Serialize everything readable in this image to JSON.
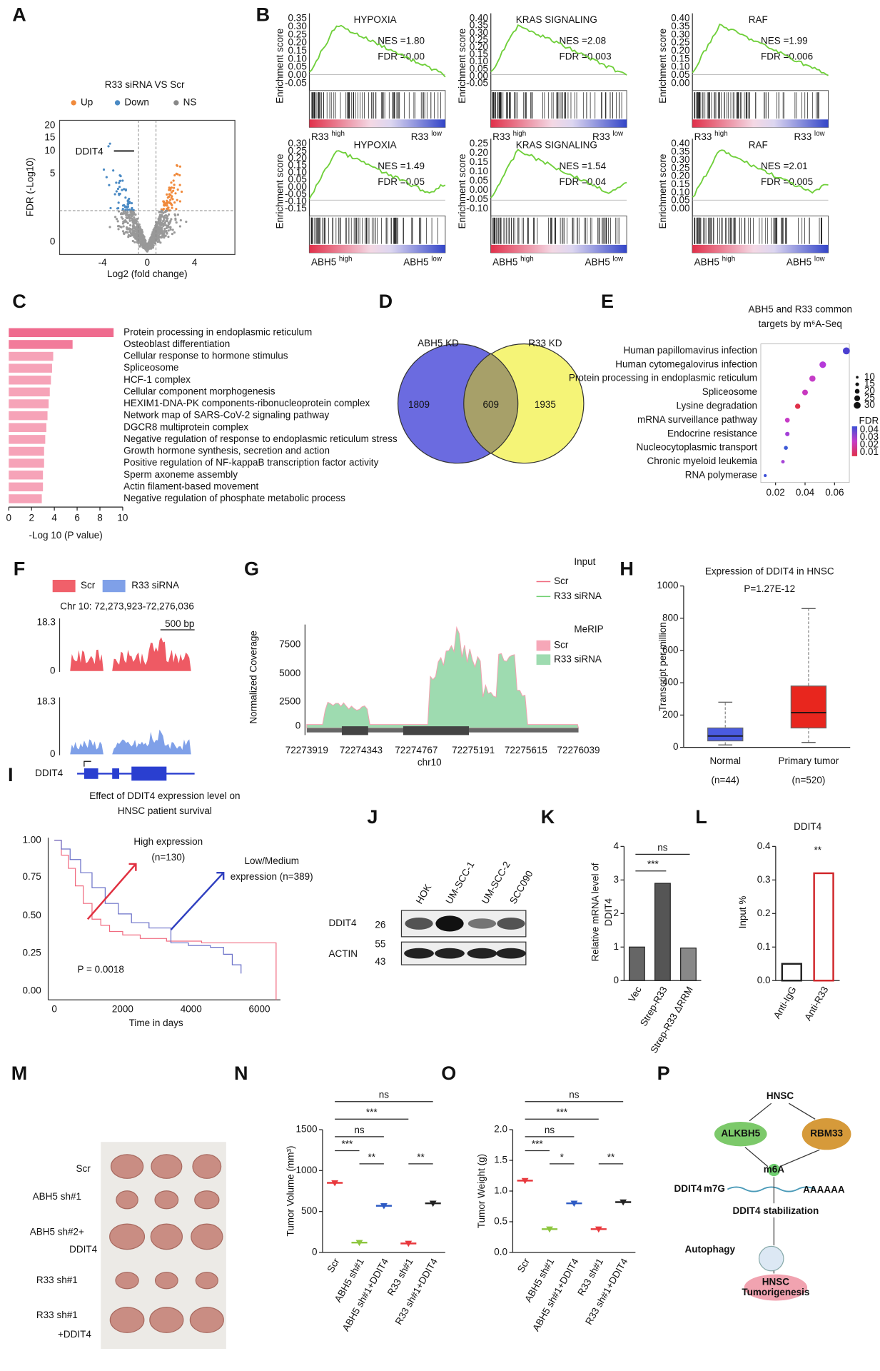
{
  "panels": {
    "labels": [
      "A",
      "B",
      "C",
      "D",
      "E",
      "F",
      "G",
      "H",
      "I",
      "J",
      "K",
      "L",
      "M",
      "N",
      "O",
      "P"
    ],
    "A": {
      "title": "R33 siRNA VS Scr",
      "legend": [
        "Up",
        "Down",
        "NS"
      ],
      "gene": "DDIT4",
      "x_label": "Log2 (fold change)",
      "y_label": "FDR (-Log10)",
      "x_ticks": [
        "-4",
        "0",
        "4"
      ],
      "y_ticks": [
        "20",
        "15",
        "10",
        "5",
        "0"
      ]
    },
    "B": {
      "y_label": "Enrichment score",
      "plots": [
        {
          "title": "HYPOXIA",
          "nes": "NES =1.80",
          "fdr": "FDR =0.00",
          "gene": "R33",
          "high": "high",
          "low": "low",
          "yticks": [
            "0.35",
            "0.30",
            "0.25",
            "0.20",
            "0.15",
            "0.10",
            "0.05",
            "0.00",
            "-0.05"
          ]
        },
        {
          "title": "KRAS SIGNALING",
          "nes": "NES =2.08",
          "fdr": "FDR =0.003",
          "gene": "R33",
          "high": "high",
          "low": "low",
          "yticks": [
            "0.40",
            "0.35",
            "0.30",
            "0.25",
            "0.20",
            "0.15",
            "0.10",
            "0.05",
            "0.00",
            "-0.05"
          ]
        },
        {
          "title": "RAF",
          "nes": "NES =1.99",
          "fdr": "FDR =0.006",
          "gene": "R33",
          "high": "high",
          "low": "low",
          "yticks": [
            "0.40",
            "0.35",
            "0.30",
            "0.25",
            "0.20",
            "0.15",
            "0.10",
            "0.05",
            "0.00"
          ]
        },
        {
          "title": "HYPOXIA",
          "nes": "NES =1.49",
          "fdr": "FDR =0.05",
          "gene": "ABH5",
          "high": "high",
          "low": "low",
          "yticks": [
            "0.30",
            "0.25",
            "0.20",
            "0.15",
            "0.10",
            "0.05",
            "0.00",
            "-0.05",
            "-0.10",
            "-0.15"
          ]
        },
        {
          "title": "KRAS SIGNALING",
          "nes": "NES =1.54",
          "fdr": "FDR =0.04",
          "gene": "ABH5",
          "high": "high",
          "low": "low",
          "yticks": [
            "0.25",
            "0.20",
            "0.15",
            "0.10",
            "0.05",
            "0.00",
            "-0.05",
            "-0.10"
          ]
        },
        {
          "title": "RAF",
          "nes": "NES =2.01",
          "fdr": "FDR =0.005",
          "gene": "ABH5",
          "high": "high",
          "low": "low",
          "yticks": [
            "0.40",
            "0.35",
            "0.30",
            "0.25",
            "0.20",
            "0.15",
            "0.10",
            "0.05",
            "0.00"
          ]
        }
      ]
    },
    "D": {
      "sets": [
        "ABH5 KD",
        "R33 KD"
      ],
      "counts": [
        1809,
        609,
        1935
      ]
    },
    "F": {
      "legend": [
        "Scr",
        "R33 siRNA"
      ],
      "region": "Chr 10: 72,273,923-72,276,036",
      "scale": "500 bp",
      "track_max": [
        "18.3",
        "18.3"
      ],
      "track_min": [
        "0",
        "0"
      ],
      "gene": "DDIT4"
    },
    "G": {
      "input_title": "Input",
      "input_legend": [
        "Scr",
        "R33 siRNA"
      ],
      "merip_title": "MeRIP",
      "merip_legend": [
        "Scr",
        "R33 siRNA"
      ],
      "y_label": "Normalized Coverage",
      "yticks": [
        "7500",
        "5000",
        "2500",
        "0"
      ],
      "xticks": [
        "72273919",
        "72274343",
        "72274767",
        "72275191",
        "72275615",
        "72276039"
      ],
      "x_label": "chr10"
    },
    "I": {
      "title": [
        "Effect  of DDIT4 expression level on",
        "HNSC patient survival"
      ],
      "yticks": [
        "1.00",
        "0.75",
        "0.50",
        "0.25",
        "0.00"
      ],
      "xticks": [
        "0",
        "2000",
        "4000",
        "6000"
      ],
      "x_label": "Time in days",
      "high": [
        "High expression",
        "(n=130)"
      ],
      "low": [
        "Low/Medium",
        "expression (n=389)"
      ],
      "p": "P = 0.0018"
    },
    "J": {
      "lanes": [
        "HOK",
        "UM-SCC-1",
        "UM-SCC-2",
        "SCC090"
      ],
      "rows": [
        "DDIT4",
        "ACTIN"
      ],
      "markers": [
        "26",
        "55",
        "43"
      ]
    },
    "M": {
      "rows": [
        "Scr",
        "ABH5 sh#1",
        "ABH5 sh#2+",
        "DDIT4",
        "R33 sh#1",
        "R33 sh#1",
        "+DDIT4"
      ]
    },
    "P": {
      "nodes": [
        "HNSC",
        "ALKBH5",
        "RBM33",
        "m6A",
        "DDIT4",
        "m7G",
        "AAAAAA",
        "DDIT4 stabilization",
        "Autophagy",
        "HNSC",
        "Tumorigenesis"
      ]
    }
  },
  "chart_data": [
    {
      "type": "bar",
      "horizontal": true,
      "x_label": "-Log 10 (P value)",
      "categories": [
        "Protein processing in endoplasmic reticulum",
        "Osteoblast differentiation",
        "Cellular response to hormone stimulus",
        "Spliceosome",
        "HCF-1 complex",
        "Cellular component morphogenesis",
        "HEXIM1-DNA-PK components-ribonucleoprotein complex",
        "Network map of SARS-CoV-2 signaling pathway",
        "DGCR8 multiprotein complex",
        "Negative regulation of response to endoplasmic reticulum stress",
        "Growth hormone synthesis, secretion and action",
        "Positive regulation of NF-kappaB transcription factor activity",
        "Sperm axoneme assembly",
        "Actin filament-based movement",
        "Negative regulation of phosphate metabolic process"
      ],
      "values": [
        9.2,
        5.6,
        3.9,
        3.8,
        3.7,
        3.6,
        3.5,
        3.4,
        3.3,
        3.2,
        3.1,
        3.1,
        3.0,
        3.0,
        2.9
      ],
      "colors": [
        "#ef6b8e",
        "#f27b9a",
        "#f6a3b8",
        "#f6a3b8",
        "#f6a3b8",
        "#f6a3b8",
        "#f6a3b8",
        "#f6a3b8",
        "#f6a3b8",
        "#f6a3b8",
        "#f6a3b8",
        "#f6a3b8",
        "#f6a3b8",
        "#f6a3b8",
        "#f6a3b8"
      ],
      "xlim": [
        0,
        10
      ],
      "xticks": [
        0,
        2,
        4,
        6,
        8,
        10
      ]
    },
    {
      "type": "dot",
      "title": [
        "ABH5 and R33 common",
        "targets by m⁶A-Seq"
      ],
      "categories": [
        "Human papillomavirus infection",
        "Human cytomegalovirus infection",
        "Protein processing in endoplasmic reticulum",
        "Spliceosome",
        "Lysine degradation",
        "mRNA surveillance pathway",
        "Endocrine resistance",
        "Nucleocytoplasmic transport",
        "Chronic myeloid leukemia",
        "RNA polymerase"
      ],
      "values": [
        0.068,
        0.052,
        0.045,
        0.04,
        0.035,
        0.028,
        0.028,
        0.027,
        0.025,
        0.013
      ],
      "colors": [
        "#4b3fd0",
        "#b53ad9",
        "#c53dc7",
        "#c838c0",
        "#e0304a",
        "#c63bc6",
        "#a33fd8",
        "#3d5ad6",
        "#a644d6",
        "#3d4fd6"
      ],
      "xlim": [
        0.01,
        0.07
      ],
      "xticks": [
        0.02,
        0.04,
        0.06
      ],
      "size_legend": [
        "10",
        "15",
        "20",
        "25",
        "30"
      ],
      "color_legend_title": "FDR",
      "color_legend": [
        "0.04",
        "0.03",
        "0.02",
        "0.01"
      ]
    },
    {
      "type": "box",
      "title": "Expression of DDIT4 in HNSC",
      "subtitle": "P=1.27E-12",
      "y_label": "Transcript per million",
      "categories": [
        "Normal",
        "Primary tumor"
      ],
      "n_labels": [
        "(n=44)",
        "(n=520)"
      ],
      "boxes": [
        {
          "min": 15,
          "q1": 40,
          "median": 70,
          "q3": 120,
          "max": 280
        },
        {
          "min": 30,
          "q1": 120,
          "median": 215,
          "q3": 380,
          "max": 860
        }
      ],
      "colors": [
        "#4a5be0",
        "#e8261e"
      ],
      "ylim": [
        0,
        1000
      ],
      "yticks": [
        0,
        200,
        400,
        600,
        800,
        1000
      ]
    },
    {
      "type": "bar",
      "y_label": [
        "Relative mRNA level of",
        "DDIT4"
      ],
      "categories": [
        "Vec",
        "Strep-R33",
        "Strep-R33 ΔRRM"
      ],
      "values": [
        1.0,
        2.9,
        0.97
      ],
      "colors": [
        "#666666",
        "#555555",
        "#888888"
      ],
      "outline": false,
      "ylim": [
        0,
        4
      ],
      "yticks": [
        0,
        1,
        2,
        3,
        4
      ],
      "annotations": [
        "ns",
        "***"
      ]
    },
    {
      "type": "bar",
      "title": "DDIT4",
      "y_label": "Input %",
      "categories": [
        "Anti-IgG",
        "Anti-R33"
      ],
      "values": [
        0.05,
        0.32
      ],
      "colors": [
        "#222222",
        "#d0262a"
      ],
      "outline": true,
      "ylim": [
        0,
        0.4
      ],
      "yticks": [
        {
          "value": 0,
          "label": "0.0"
        },
        0.1,
        0.2,
        0.3,
        0.4
      ],
      "annotations": [
        "**"
      ]
    },
    {
      "type": "strip",
      "y_label": "Tumor Volume (mm³)",
      "categories": [
        "Scr",
        "ABH5 sh#1",
        "ABH5 sh#1+DDIT4",
        "R33 sh#1",
        "R33 sh#1+DDIT4"
      ],
      "values": [
        850,
        120,
        570,
        110,
        600
      ],
      "colors": [
        "#e8383d",
        "#8dc63f",
        "#2e5bc4",
        "#e8383d",
        "#222222"
      ],
      "ylim": [
        0,
        1500
      ],
      "yticks": [
        0,
        500,
        1000,
        1500
      ],
      "annotations": [
        "ns",
        "***",
        "ns",
        "***",
        "**",
        "**"
      ]
    },
    {
      "type": "strip",
      "y_label": "Tumor Weight (g)",
      "categories": [
        "Scr",
        "ABH5 sh#1",
        "ABH5 sh#1+DDIT4",
        "R33 sh#1",
        "R33 sh#1+DDIT4"
      ],
      "values": [
        1.17,
        0.38,
        0.8,
        0.38,
        0.82
      ],
      "colors": [
        "#e8383d",
        "#8dc63f",
        "#2e5bc4",
        "#e8383d",
        "#222222"
      ],
      "ylim": [
        0,
        2.0
      ],
      "yticks": [
        {
          "value": 0,
          "label": "0.0"
        },
        0.5,
        {
          "value": 1,
          "label": "1.0"
        },
        1.5,
        {
          "value": 2,
          "label": "2.0"
        }
      ],
      "annotations": [
        "ns",
        "***",
        "ns",
        "***",
        "*",
        "**"
      ]
    }
  ]
}
